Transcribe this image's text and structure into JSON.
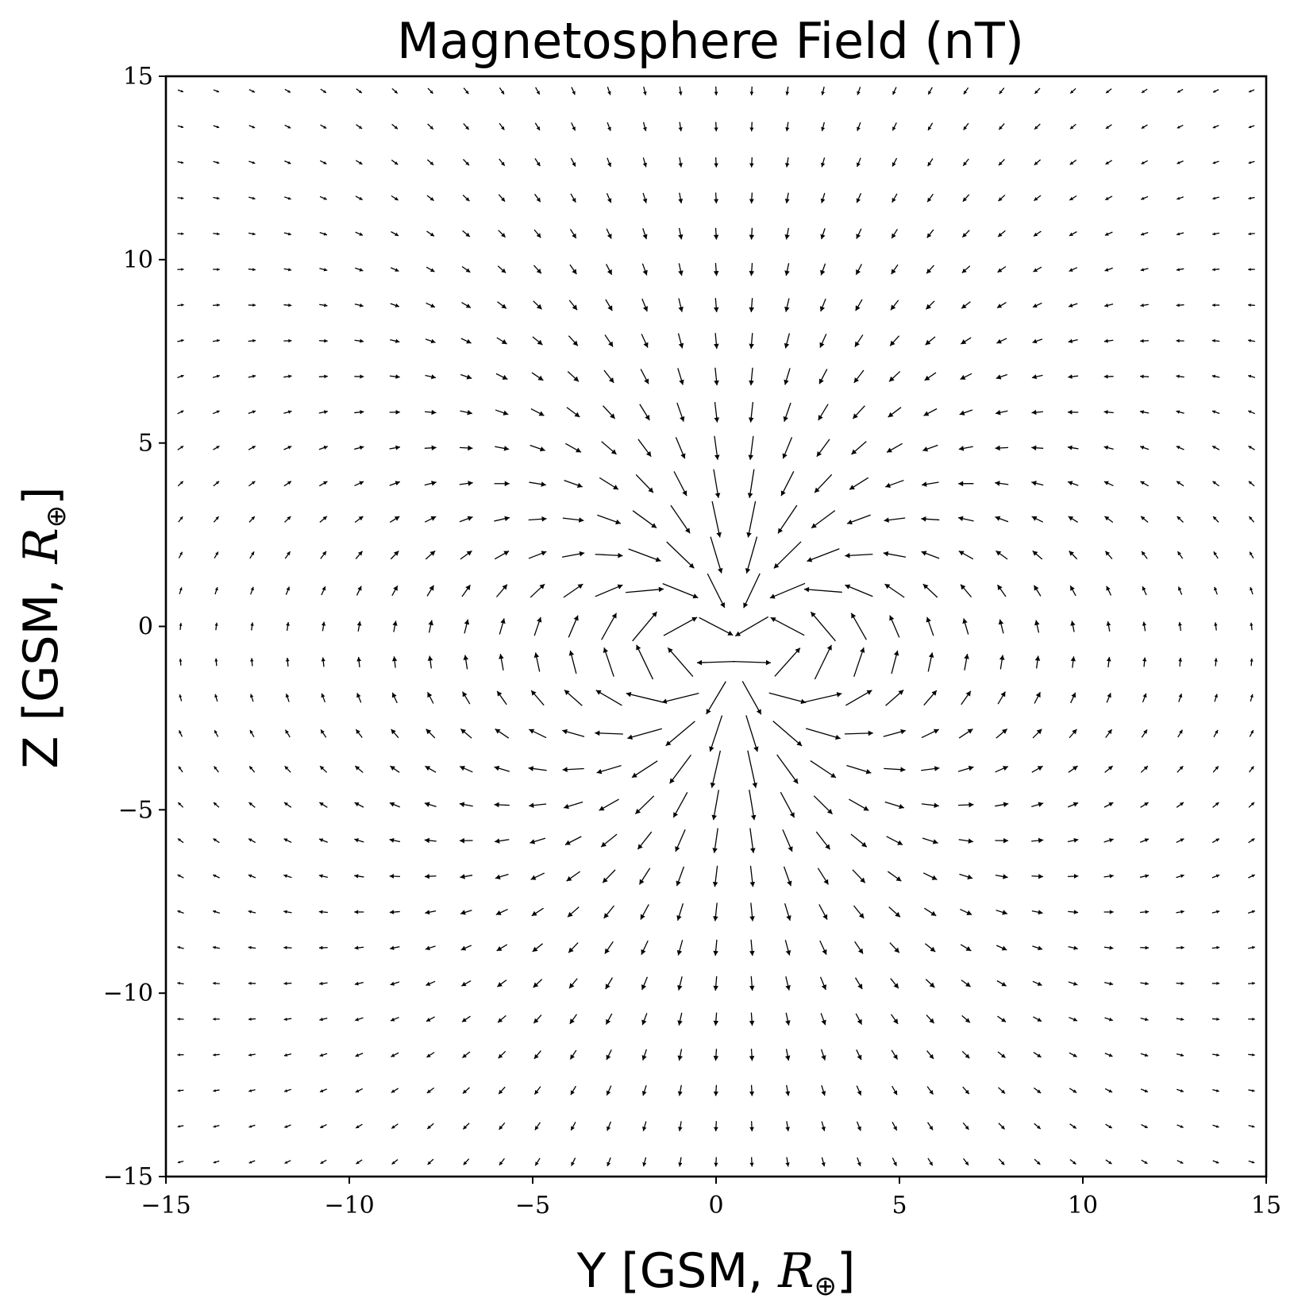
{
  "chart_data": {
    "type": "quiver",
    "title": "Magnetosphere Field (nT)",
    "xlabel": {
      "text": "Y [GSM, ",
      "symbol": "R",
      "subscript": "⊕",
      "close": "]"
    },
    "ylabel": {
      "text": "Z [GSM, ",
      "symbol": "R",
      "subscript": "⊕",
      "close": "]"
    },
    "xlim": [
      -15,
      15
    ],
    "ylim": [
      -15,
      15
    ],
    "xticks": [
      -15,
      -10,
      -5,
      0,
      5,
      10,
      15
    ],
    "yticks": [
      -15,
      -10,
      -5,
      0,
      5,
      10,
      15
    ],
    "xtick_labels": [
      "−15",
      "−10",
      "−5",
      "0",
      "5",
      "10",
      "15"
    ],
    "ytick_labels": [
      "−15",
      "−10",
      "−5",
      "0",
      "5",
      "10",
      "15"
    ],
    "grid": false,
    "field": {
      "grid_x": {
        "start": -14.6,
        "stop": 14.6,
        "count": 31
      },
      "grid_y": {
        "start": -14.6,
        "stop": 14.6,
        "count": 31
      },
      "dipole_center": [
        0.5,
        -0.6
      ],
      "dipole_moment_direction": [
        0,
        -1
      ]
    },
    "colors": {
      "arrows": "#000000",
      "frame": "#000000",
      "background": "#ffffff"
    }
  }
}
